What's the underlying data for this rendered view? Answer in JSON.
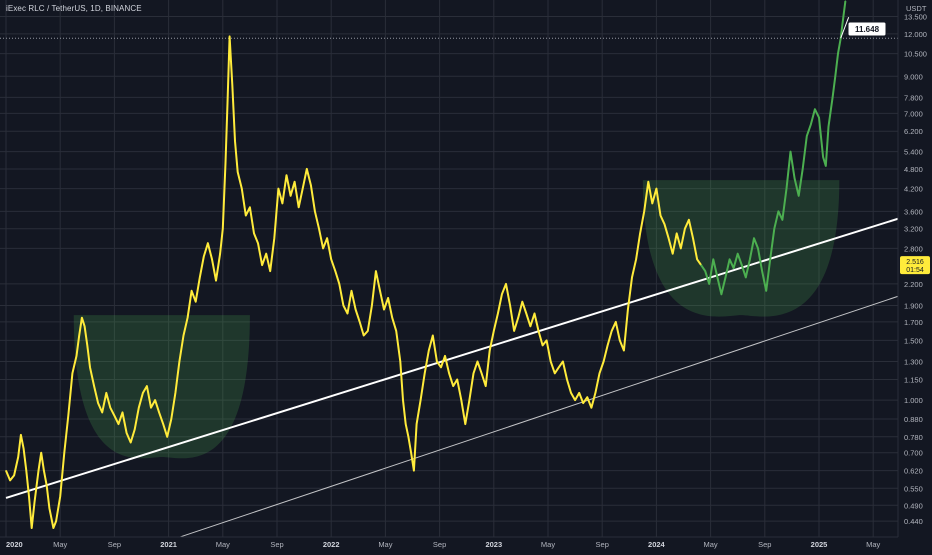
{
  "header": {
    "title": "iExec RLC / TetherUS, 1D, BINANCE"
  },
  "price_axis": {
    "currency": "USDT",
    "current_price": "2.516",
    "countdown": "01:54",
    "marker_label": "11.648",
    "ticks": [
      "13.500",
      "12.000",
      "10.500",
      "9.000",
      "7.800",
      "7.000",
      "6.200",
      "5.400",
      "4.800",
      "4.200",
      "3.600",
      "3.200",
      "2.800",
      "2.200",
      "1.900",
      "1.700",
      "1.500",
      "1.300",
      "1.150",
      "1.000",
      "0.880",
      "0.780",
      "0.700",
      "0.620",
      "0.550",
      "0.490",
      "0.440"
    ]
  },
  "time_axis": {
    "labels": [
      "2020",
      "May",
      "Sep",
      "2021",
      "May",
      "Sep",
      "2022",
      "May",
      "Sep",
      "2023",
      "May",
      "Sep",
      "2024",
      "May",
      "Sep",
      "2025",
      "May"
    ]
  },
  "colors": {
    "background": "#131722",
    "grid": "#2a2e39",
    "price_line": "#ffeb3b",
    "recent_line": "#4caf50",
    "trendline": "#ffffff",
    "cup_fill": "#4caf50",
    "price_badge": "#ffeb3b",
    "text": "#b2b5be"
  },
  "chart_data": {
    "type": "line",
    "title": "iExec RLC / TetherUS, 1D, BINANCE",
    "y_scale": "log",
    "ylim": [
      0.42,
      14.5
    ],
    "x_unit": "months since Jan 2020",
    "grid": true,
    "series": [
      {
        "name": "",
        "color": "yellow",
        "points": [
          [
            0,
            0.62
          ],
          [
            0.3,
            0.58
          ],
          [
            0.6,
            0.6
          ],
          [
            0.9,
            0.68
          ],
          [
            1.1,
            0.79
          ],
          [
            1.3,
            0.72
          ],
          [
            1.5,
            0.62
          ],
          [
            1.7,
            0.52
          ],
          [
            1.9,
            0.42
          ],
          [
            2.1,
            0.5
          ],
          [
            2.4,
            0.62
          ],
          [
            2.6,
            0.7
          ],
          [
            2.8,
            0.62
          ],
          [
            3.0,
            0.56
          ],
          [
            3.2,
            0.48
          ],
          [
            3.5,
            0.42
          ],
          [
            3.7,
            0.44
          ],
          [
            4.0,
            0.52
          ],
          [
            4.3,
            0.7
          ],
          [
            4.6,
            0.9
          ],
          [
            4.9,
            1.2
          ],
          [
            5.2,
            1.35
          ],
          [
            5.4,
            1.55
          ],
          [
            5.6,
            1.75
          ],
          [
            5.8,
            1.65
          ],
          [
            6.0,
            1.45
          ],
          [
            6.2,
            1.25
          ],
          [
            6.5,
            1.1
          ],
          [
            6.8,
            0.98
          ],
          [
            7.1,
            0.92
          ],
          [
            7.4,
            1.05
          ],
          [
            7.7,
            0.95
          ],
          [
            8.0,
            0.9
          ],
          [
            8.3,
            0.85
          ],
          [
            8.6,
            0.92
          ],
          [
            8.9,
            0.8
          ],
          [
            9.2,
            0.75
          ],
          [
            9.5,
            0.82
          ],
          [
            9.8,
            0.95
          ],
          [
            10.1,
            1.05
          ],
          [
            10.4,
            1.1
          ],
          [
            10.7,
            0.95
          ],
          [
            11.0,
            1.0
          ],
          [
            11.3,
            0.92
          ],
          [
            11.6,
            0.85
          ],
          [
            11.9,
            0.78
          ],
          [
            12.2,
            0.88
          ],
          [
            12.5,
            1.05
          ],
          [
            12.8,
            1.3
          ],
          [
            13.1,
            1.55
          ],
          [
            13.4,
            1.75
          ],
          [
            13.7,
            2.1
          ],
          [
            14.0,
            1.95
          ],
          [
            14.3,
            2.3
          ],
          [
            14.6,
            2.65
          ],
          [
            14.9,
            2.9
          ],
          [
            15.2,
            2.6
          ],
          [
            15.5,
            2.25
          ],
          [
            15.8,
            2.7
          ],
          [
            16.0,
            3.2
          ],
          [
            16.2,
            5.0
          ],
          [
            16.35,
            7.5
          ],
          [
            16.5,
            11.8
          ],
          [
            16.7,
            8.5
          ],
          [
            16.9,
            5.8
          ],
          [
            17.1,
            4.7
          ],
          [
            17.4,
            4.2
          ],
          [
            17.7,
            3.5
          ],
          [
            18.0,
            3.7
          ],
          [
            18.3,
            3.1
          ],
          [
            18.6,
            2.9
          ],
          [
            18.9,
            2.5
          ],
          [
            19.2,
            2.7
          ],
          [
            19.5,
            2.4
          ],
          [
            19.8,
            3.0
          ],
          [
            20.1,
            4.2
          ],
          [
            20.4,
            3.8
          ],
          [
            20.7,
            4.6
          ],
          [
            21.0,
            4.0
          ],
          [
            21.3,
            4.4
          ],
          [
            21.6,
            3.7
          ],
          [
            21.9,
            4.2
          ],
          [
            22.2,
            4.8
          ],
          [
            22.5,
            4.3
          ],
          [
            22.8,
            3.6
          ],
          [
            23.1,
            3.2
          ],
          [
            23.4,
            2.8
          ],
          [
            23.7,
            3.0
          ],
          [
            24.0,
            2.6
          ],
          [
            24.3,
            2.4
          ],
          [
            24.6,
            2.2
          ],
          [
            24.9,
            1.9
          ],
          [
            25.2,
            1.8
          ],
          [
            25.5,
            2.1
          ],
          [
            25.8,
            1.85
          ],
          [
            26.1,
            1.7
          ],
          [
            26.4,
            1.55
          ],
          [
            26.7,
            1.6
          ],
          [
            27.0,
            1.9
          ],
          [
            27.3,
            2.4
          ],
          [
            27.6,
            2.1
          ],
          [
            27.9,
            1.85
          ],
          [
            28.2,
            2.0
          ],
          [
            28.5,
            1.75
          ],
          [
            28.8,
            1.6
          ],
          [
            29.1,
            1.3
          ],
          [
            29.3,
            1.0
          ],
          [
            29.5,
            0.85
          ],
          [
            29.7,
            0.78
          ],
          [
            29.9,
            0.7
          ],
          [
            30.1,
            0.62
          ],
          [
            30.3,
            0.85
          ],
          [
            30.6,
            1.0
          ],
          [
            30.9,
            1.2
          ],
          [
            31.2,
            1.4
          ],
          [
            31.5,
            1.55
          ],
          [
            31.8,
            1.3
          ],
          [
            32.1,
            1.25
          ],
          [
            32.4,
            1.35
          ],
          [
            32.7,
            1.2
          ],
          [
            33.0,
            1.1
          ],
          [
            33.3,
            1.15
          ],
          [
            33.6,
            1.0
          ],
          [
            33.9,
            0.85
          ],
          [
            34.2,
            1.0
          ],
          [
            34.5,
            1.2
          ],
          [
            34.8,
            1.3
          ],
          [
            35.1,
            1.2
          ],
          [
            35.4,
            1.1
          ],
          [
            35.7,
            1.4
          ],
          [
            36.0,
            1.6
          ],
          [
            36.3,
            1.8
          ],
          [
            36.6,
            2.05
          ],
          [
            36.9,
            2.2
          ],
          [
            37.2,
            1.9
          ],
          [
            37.5,
            1.6
          ],
          [
            37.8,
            1.75
          ],
          [
            38.1,
            1.95
          ],
          [
            38.4,
            1.8
          ],
          [
            38.7,
            1.65
          ],
          [
            39.0,
            1.8
          ],
          [
            39.3,
            1.6
          ],
          [
            39.6,
            1.45
          ],
          [
            39.9,
            1.5
          ],
          [
            40.2,
            1.3
          ],
          [
            40.5,
            1.2
          ],
          [
            40.8,
            1.25
          ],
          [
            41.1,
            1.3
          ],
          [
            41.4,
            1.15
          ],
          [
            41.7,
            1.05
          ],
          [
            42.0,
            1.0
          ],
          [
            42.3,
            1.05
          ],
          [
            42.6,
            0.98
          ],
          [
            42.9,
            1.02
          ],
          [
            43.2,
            0.95
          ],
          [
            43.5,
            1.05
          ],
          [
            43.8,
            1.2
          ],
          [
            44.1,
            1.3
          ],
          [
            44.4,
            1.45
          ],
          [
            44.7,
            1.6
          ],
          [
            45.0,
            1.7
          ],
          [
            45.3,
            1.5
          ],
          [
            45.6,
            1.4
          ],
          [
            45.9,
            1.85
          ],
          [
            46.2,
            2.3
          ],
          [
            46.5,
            2.6
          ],
          [
            46.8,
            3.1
          ],
          [
            47.1,
            3.6
          ],
          [
            47.4,
            4.4
          ],
          [
            47.7,
            3.8
          ],
          [
            48.0,
            4.2
          ],
          [
            48.3,
            3.5
          ],
          [
            48.6,
            3.3
          ],
          [
            48.9,
            3.0
          ],
          [
            49.2,
            2.7
          ],
          [
            49.5,
            3.1
          ],
          [
            49.8,
            2.8
          ],
          [
            50.1,
            3.2
          ],
          [
            50.4,
            3.4
          ],
          [
            50.7,
            3.0
          ],
          [
            51.0,
            2.6
          ],
          [
            51.3,
            2.5
          ]
        ]
      },
      {
        "name": "",
        "color": "green",
        "points": [
          [
            51.3,
            2.5
          ],
          [
            51.6,
            2.4
          ],
          [
            51.9,
            2.2
          ],
          [
            52.2,
            2.6
          ],
          [
            52.5,
            2.3
          ],
          [
            52.8,
            2.05
          ],
          [
            53.1,
            2.3
          ],
          [
            53.4,
            2.6
          ],
          [
            53.7,
            2.45
          ],
          [
            54.0,
            2.7
          ],
          [
            54.3,
            2.5
          ],
          [
            54.6,
            2.3
          ],
          [
            54.9,
            2.6
          ],
          [
            55.2,
            3.0
          ],
          [
            55.5,
            2.8
          ],
          [
            55.8,
            2.4
          ],
          [
            56.1,
            2.1
          ],
          [
            56.4,
            2.6
          ],
          [
            56.7,
            3.2
          ],
          [
            57.0,
            3.6
          ],
          [
            57.3,
            3.4
          ],
          [
            57.6,
            4.2
          ],
          [
            57.9,
            5.4
          ],
          [
            58.2,
            4.5
          ],
          [
            58.5,
            4.0
          ],
          [
            58.8,
            4.8
          ],
          [
            59.1,
            6.0
          ],
          [
            59.4,
            6.5
          ],
          [
            59.7,
            7.2
          ],
          [
            60.0,
            6.8
          ],
          [
            60.3,
            5.2
          ],
          [
            60.5,
            4.9
          ],
          [
            60.7,
            6.4
          ],
          [
            61.0,
            7.8
          ],
          [
            61.2,
            9.0
          ],
          [
            61.4,
            10.5
          ],
          [
            61.6,
            11.65
          ],
          [
            61.8,
            13.5
          ],
          [
            61.95,
            15.0
          ]
        ]
      }
    ],
    "trendlines": [
      {
        "from": [
          0,
          0.515
        ],
        "to": [
          70,
          3.86
        ]
      },
      {
        "from": [
          12,
          0.385
        ],
        "to": [
          70,
          2.3
        ]
      }
    ],
    "cups": [
      {
        "x_start": 5.0,
        "x_end": 18.0,
        "top": 1.78,
        "bottom": 0.68
      },
      {
        "x_start": 47.0,
        "x_end": 61.5,
        "top": 4.45,
        "bottom": 1.78
      }
    ],
    "hline": 11.648
  }
}
